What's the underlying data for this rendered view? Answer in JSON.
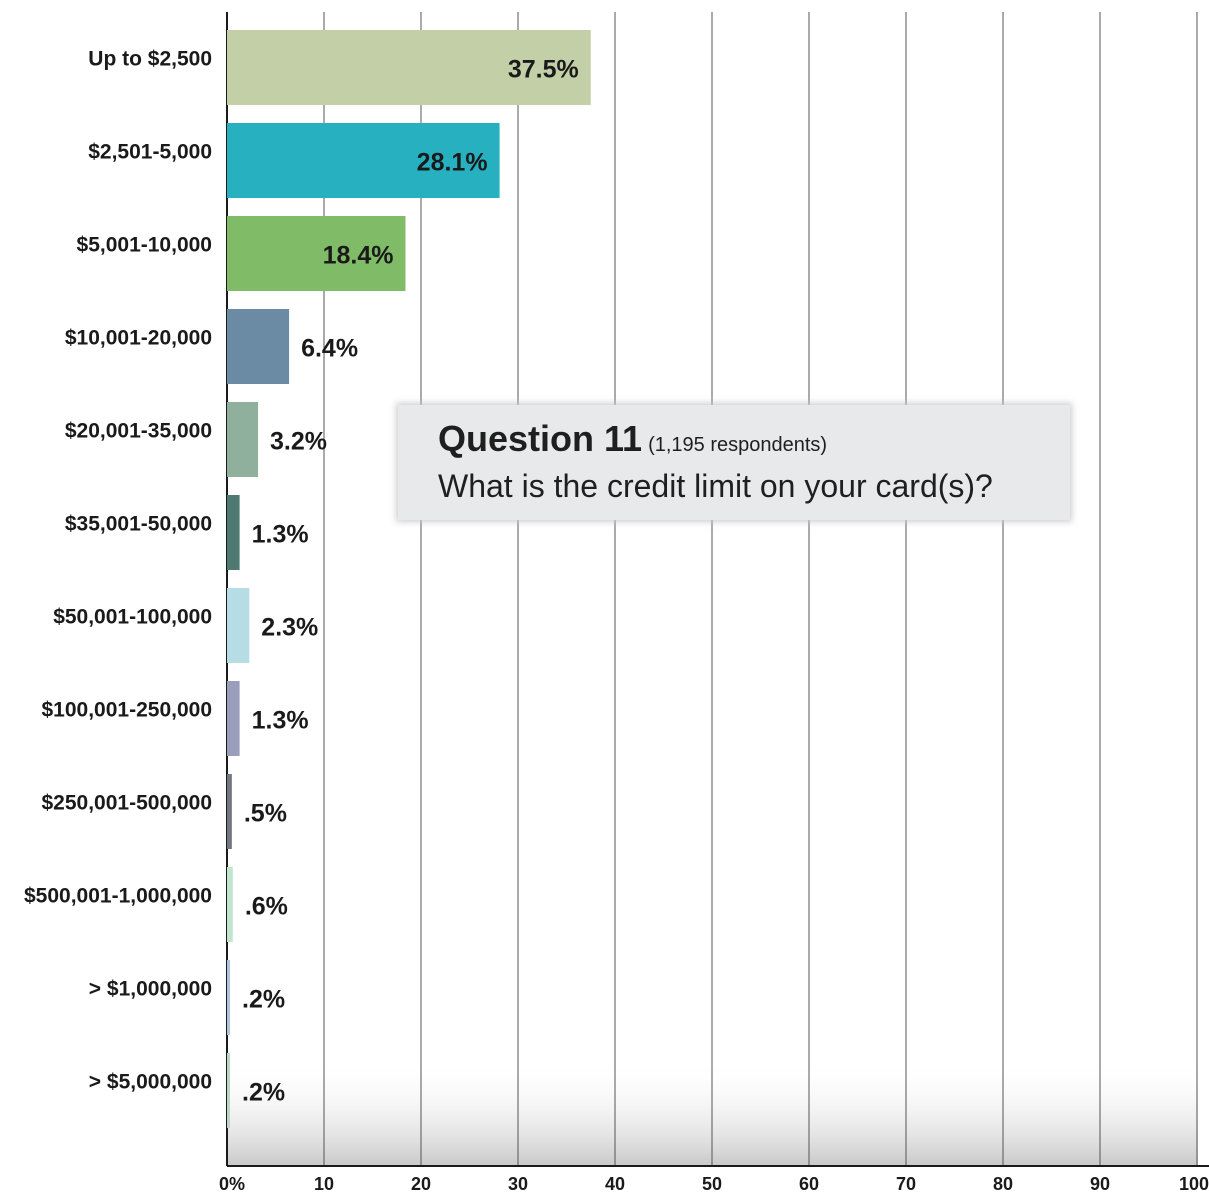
{
  "chart_data": {
    "type": "bar",
    "orientation": "horizontal",
    "title": "Question 11",
    "subtitle": "(1,195 respondents)",
    "question": "What is the credit limit on your card(s)?",
    "categories": [
      "Up to $2,500",
      "$2,501-5,000",
      "$5,001-10,000",
      "$10,001-20,000",
      "$20,001-35,000",
      "$35,001-50,000",
      "$50,001-100,000",
      "$100,001-250,000",
      "$250,001-500,000",
      "$500,001-1,000,000",
      "> $1,000,000",
      "> $5,000,000"
    ],
    "values": [
      37.5,
      28.1,
      18.4,
      6.4,
      3.2,
      1.3,
      2.3,
      1.3,
      0.5,
      0.6,
      0.2,
      0.2
    ],
    "value_labels": [
      "37.5%",
      "28.1%",
      "18.4%",
      "6.4%",
      "3.2%",
      "1.3%",
      "2.3%",
      "1.3%",
      ".5%",
      ".6%",
      ".2%",
      ".2%"
    ],
    "colors": [
      "#c3cfa6",
      "#27b0bf",
      "#80bb68",
      "#6b8aa4",
      "#8fb09c",
      "#4f7a72",
      "#b6dce5",
      "#9a9ebb",
      "#73777f",
      "#c1e6cd",
      "#aec3de",
      "#b8d8c5"
    ],
    "x_ticks": [
      "0%",
      "10",
      "20",
      "30",
      "40",
      "50",
      "60",
      "70",
      "80",
      "90",
      "100"
    ],
    "xlim": [
      0,
      100
    ],
    "grid": true,
    "gridline_color": "#555555",
    "xlabel": "",
    "ylabel": ""
  }
}
